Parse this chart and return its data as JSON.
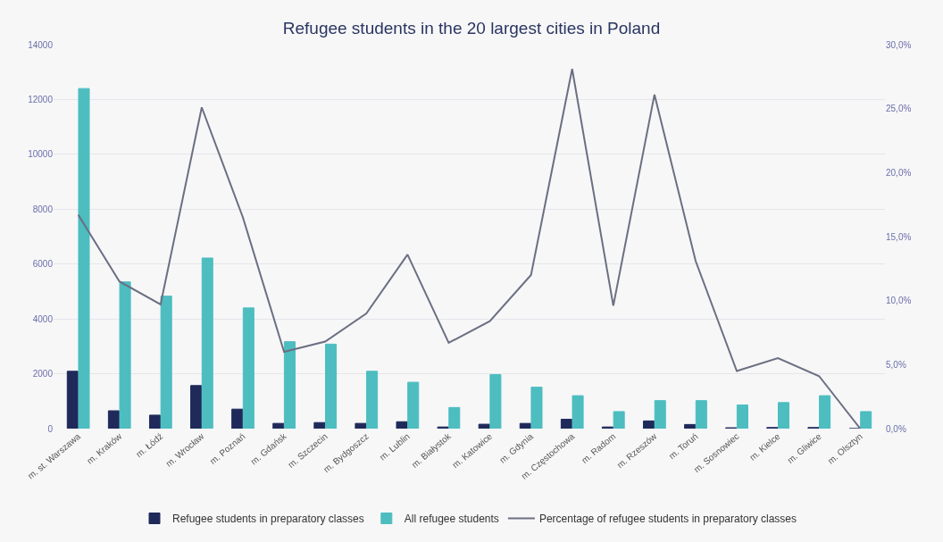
{
  "chart_data": {
    "type": "bar",
    "title": "Refugee students in the 20 largest cities in Poland",
    "categories": [
      "m. st. Warszawa",
      "m. Kraków",
      "m. Łódź",
      "m. Wrocław",
      "m. Poznań",
      "m. Gdańsk",
      "m. Szczecin",
      "m. Bydgoszcz",
      "m. Lublin",
      "m. Białystok",
      "m. Katowice",
      "m. Gdynia",
      "m. Częstochowa",
      "m. Radom",
      "m. Rzeszów",
      "m. Toruń",
      "m. Sosnowiec",
      "m. Kielce",
      "m. Gliwice",
      "m. Olsztyn"
    ],
    "series": [
      {
        "name": "Refugee students in preparatory classes",
        "color": "#1f2a5a",
        "values": [
          2090,
          650,
          490,
          1570,
          710,
          190,
          220,
          190,
          250,
          60,
          160,
          190,
          340,
          60,
          280,
          150,
          30,
          40,
          40,
          0
        ]
      },
      {
        "name": "All refugee students",
        "color": "#4dbdc0",
        "values": [
          12400,
          5350,
          4830,
          6220,
          4400,
          3170,
          3080,
          2090,
          1690,
          770,
          1970,
          1510,
          1200,
          620,
          1020,
          1020,
          860,
          950,
          1200,
          620
        ]
      },
      {
        "name": "Percentage of refugee students in preparatory classes",
        "type": "line",
        "axis": "y2",
        "color": "#6b6f82",
        "values": [
          16.7,
          11.5,
          9.7,
          25.1,
          16.5,
          6.0,
          6.8,
          9.0,
          13.6,
          6.7,
          8.4,
          12.0,
          28.1,
          9.6,
          26.1,
          13.1,
          4.5,
          5.5,
          4.1,
          0
        ]
      }
    ],
    "ylim": [
      0,
      14000
    ],
    "yticks": [
      0,
      2000,
      4000,
      6000,
      8000,
      10000,
      12000,
      14000
    ],
    "y2lim": [
      0,
      30
    ],
    "y2ticks": [
      {
        "value": 0,
        "label": "0,0%"
      },
      {
        "value": 5,
        "label": "5,0%"
      },
      {
        "value": 10,
        "label": "10,0%"
      },
      {
        "value": 15,
        "label": "15,0%"
      },
      {
        "value": 20,
        "label": "20,0%"
      },
      {
        "value": 25,
        "label": "25,0%"
      },
      {
        "value": 30,
        "label": "30,0%"
      }
    ],
    "grid": "y",
    "legend": "bottom",
    "marker": "none",
    "line_style": "solid"
  }
}
